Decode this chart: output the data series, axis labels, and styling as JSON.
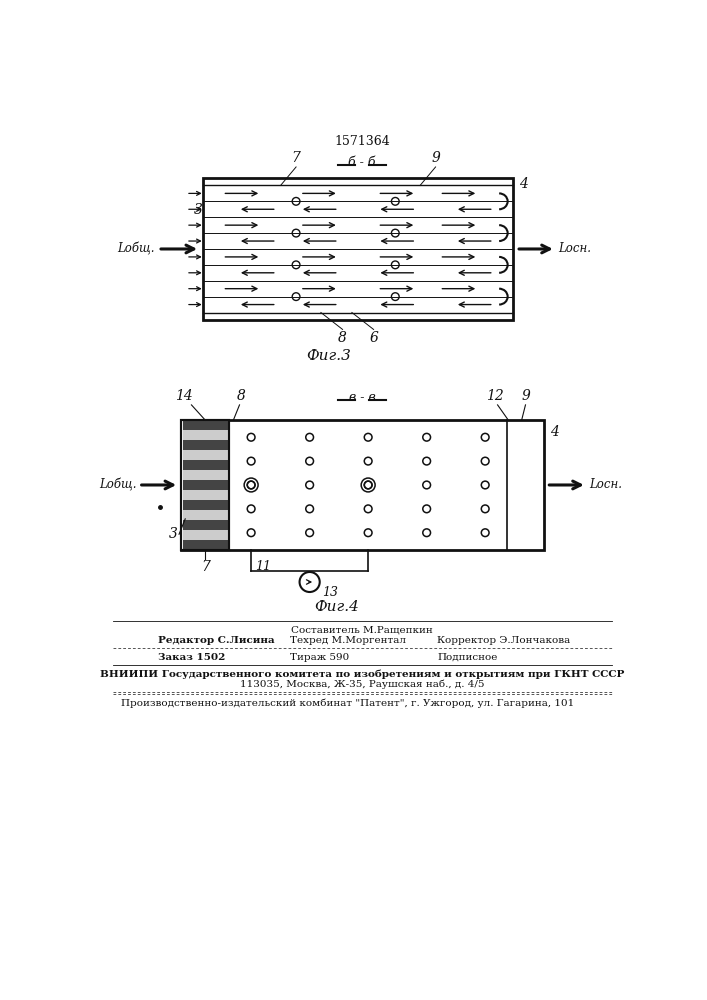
{
  "patent_number": "1571364",
  "fig3_section": "б-б",
  "fig4_section": "в-в",
  "fig3_caption": "Фиг.3",
  "fig4_caption": "Фиг.4",
  "label_L_obsh": "Lобщ.",
  "label_L_osn": "Lосн.",
  "footer_line0": "Составитель М.Ращепкин",
  "footer_line1_left": "Редактор С.Лисина",
  "footer_line1_mid": "Техред М.Моргентал",
  "footer_line1_right": "Корректор Э.Лончакова",
  "footer_line2_left": "Заказ 1502",
  "footer_line2_mid": "Тираж 590",
  "footer_line2_right": "Подписное",
  "footer_vnipi1": "ВНИИПИ Государственного комитета по изобретениям и открытиям при ГКНТ СССР",
  "footer_vnipi2": "113035, Москва, Ж-35, Раушская наб., д. 4/5",
  "footer_patent": "Производственно-издательский комбинат \"Патент\", г. Ужгород, ул. Гагарина, 101",
  "lc": "#111111"
}
